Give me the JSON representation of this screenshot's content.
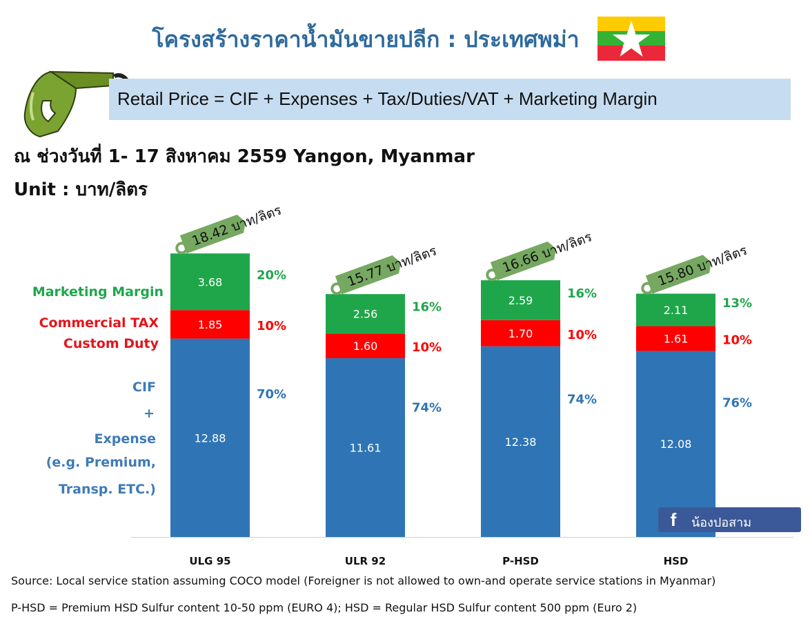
{
  "header": {
    "title": "โครงสร้างราคาน้ำมันขายปลีก : ประเทศพม่า",
    "formula": "Retail Price = CIF + Expenses + Tax/Duties/VAT + Marketing Margin",
    "subtitle": "ณ ช่วงวันที่ 1- 17 สิงหาคม 2559 Yangon, Myanmar",
    "unit": "Unit : บาท/ลิตร"
  },
  "legend": {
    "marketing_margin": "Marketing Margin",
    "commercial_tax": "Commercial TAX",
    "custom_duty": "Custom Duty",
    "cif_lines": [
      "CIF",
      "+",
      "Expense",
      "(e.g. Premium,",
      "Transp. ETC.)"
    ]
  },
  "colors": {
    "cif": "#2f75b5",
    "tax": "#ff0000",
    "margin": "#1fa64b",
    "tag": "#76a861",
    "title": "#2e6a9e",
    "formula_bg": "#c6dcf0"
  },
  "chart_data": {
    "type": "bar",
    "stacked": true,
    "categories": [
      "ULG 95",
      "ULR 92",
      "P-HSD",
      "HSD"
    ],
    "series": [
      {
        "name": "CIF + Expense",
        "values": [
          12.88,
          11.61,
          12.38,
          12.08
        ],
        "percent": [
          "70%",
          "74%",
          "74%",
          "76%"
        ]
      },
      {
        "name": "Commercial TAX / Custom Duty",
        "values": [
          1.85,
          1.6,
          1.7,
          1.61
        ],
        "percent": [
          "10%",
          "10%",
          "10%",
          "10%"
        ]
      },
      {
        "name": "Marketing Margin",
        "values": [
          3.68,
          2.56,
          2.59,
          2.11
        ],
        "percent": [
          "20%",
          "16%",
          "16%",
          "13%"
        ]
      }
    ],
    "totals": [
      "18.42 บาท/ลิตร",
      "15.77 บาท/ลิตร",
      "16.66 บาท/ลิตร",
      "15.80 บาท/ลิตร"
    ],
    "value_labels": [
      [
        "12.88",
        "1.85",
        "3.68"
      ],
      [
        "11.61",
        "1.60",
        "2.56"
      ],
      [
        "12.38",
        "1.70",
        "2.59"
      ],
      [
        "12.08",
        "1.61",
        "2.11"
      ]
    ],
    "ylim": [
      0,
      18.42
    ]
  },
  "badge": {
    "icon": "facebook-icon",
    "label": "น้องปอสาม"
  },
  "footer": {
    "source": "Source: Local service station assuming COCO model (Foreigner is not allowed to own-and operate service stations in Myanmar)",
    "note": "P-HSD = Premium HSD Sulfur content 10-50 ppm (EURO 4); HSD = Regular HSD Sulfur content 500 ppm (Euro 2)"
  }
}
